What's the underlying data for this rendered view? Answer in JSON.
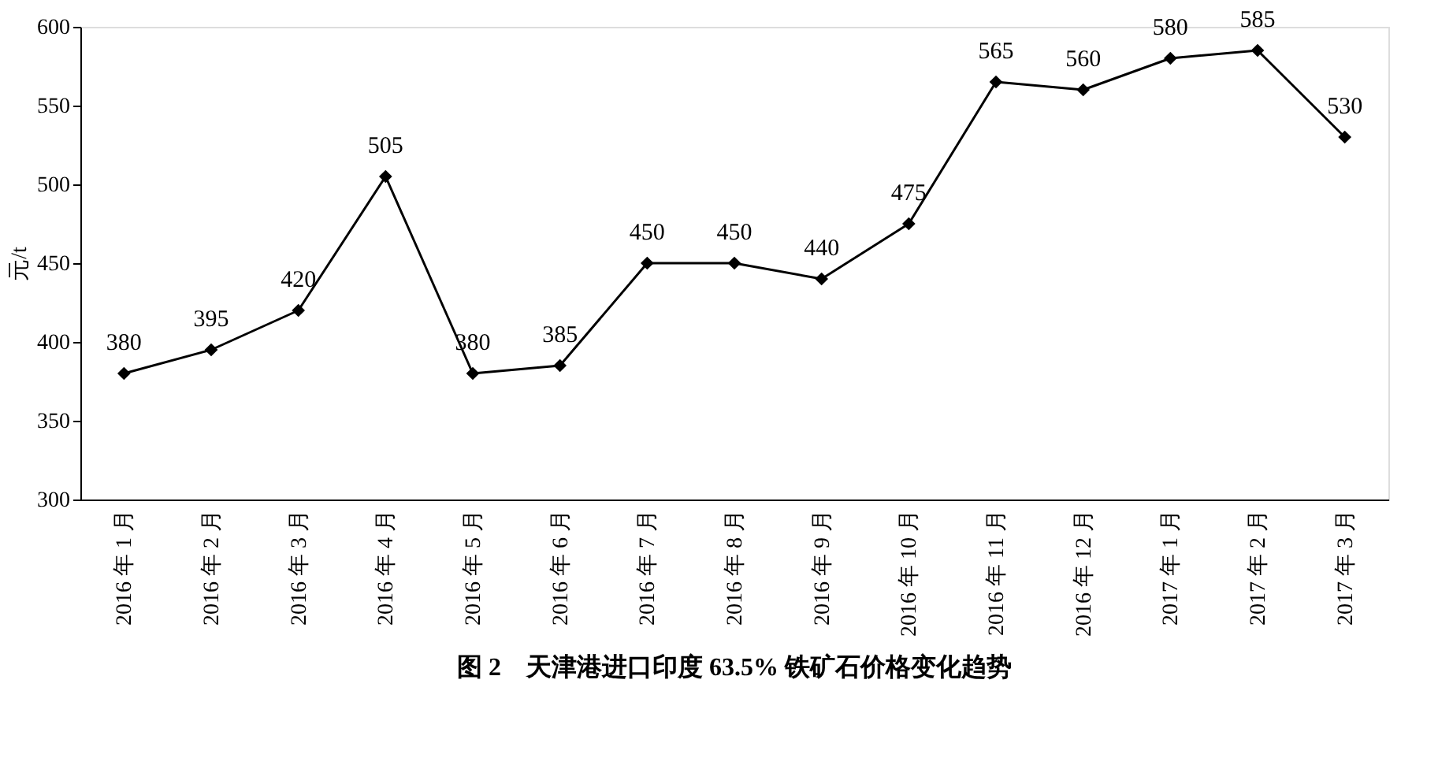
{
  "chart_data": {
    "type": "line",
    "title": "图 2　天津港进口印度 63.5% 铁矿石价格变化趋势",
    "ylabel": "元/t",
    "categories": [
      "2016 年 1 月",
      "2016 年 2 月",
      "2016 年 3 月",
      "2016 年 4 月",
      "2016 年 5 月",
      "2016 年 6 月",
      "2016 年 7 月",
      "2016 年 8 月",
      "2016 年 9 月",
      "2016 年 10 月",
      "2016 年 11 月",
      "2016 年 12 月",
      "2017 年 1 月",
      "2017 年 2 月",
      "2017 年 3 月"
    ],
    "series": [
      {
        "color": "#000000",
        "values": [
          380,
          395,
          420,
          505,
          380,
          385,
          450,
          450,
          440,
          475,
          565,
          560,
          580,
          585,
          530
        ]
      }
    ],
    "ylim": [
      300,
      600
    ],
    "yticks": [
      300,
      350,
      400,
      450,
      500,
      550,
      600
    ],
    "grid": false,
    "marker": "diamond",
    "line_style": "solid",
    "data_labels": true
  }
}
